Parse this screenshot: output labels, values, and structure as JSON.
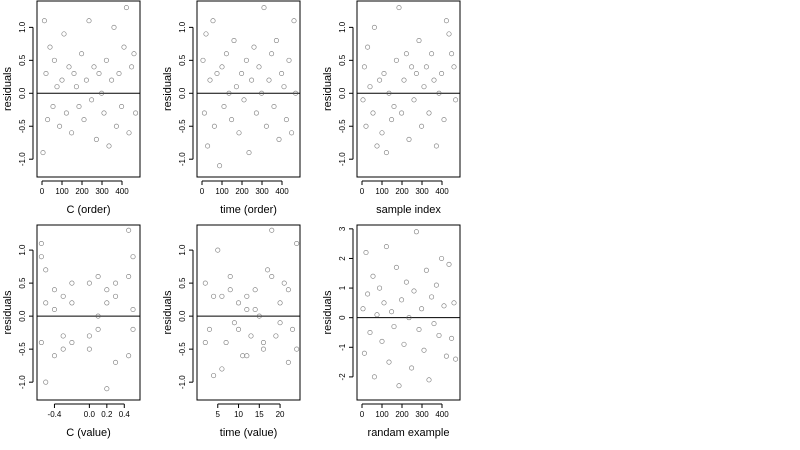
{
  "chart_data": [
    {
      "type": "scatter",
      "xlabel": "C (order)",
      "ylabel": "residuals",
      "color": "#555555",
      "hline": 0,
      "xlim": [
        -25,
        490
      ],
      "ylim": [
        -1.27,
        1.4
      ],
      "xticks": [
        0,
        100,
        200,
        300,
        400
      ],
      "yticks": [
        {
          "value": -1,
          "label": "-1.0"
        },
        -0.5,
        {
          "value": 0,
          "label": "0.0"
        },
        0.5,
        {
          "value": 1,
          "label": "1.0"
        }
      ],
      "x": [
        5,
        12,
        20,
        28,
        40,
        55,
        62,
        75,
        88,
        100,
        110,
        122,
        135,
        148,
        160,
        172,
        185,
        198,
        210,
        222,
        235,
        248,
        260,
        272,
        285,
        298,
        310,
        322,
        335,
        348,
        360,
        372,
        385,
        398,
        410,
        422,
        435,
        448,
        460,
        468
      ],
      "y": [
        -0.9,
        1.1,
        0.3,
        -0.4,
        0.7,
        -0.2,
        0.5,
        0.1,
        -0.5,
        0.2,
        0.9,
        -0.3,
        0.4,
        -0.6,
        0.3,
        0.1,
        -0.2,
        0.6,
        -0.4,
        0.2,
        1.1,
        -0.1,
        0.4,
        -0.7,
        0.3,
        0.0,
        -0.3,
        0.5,
        -0.8,
        0.2,
        1.0,
        -0.5,
        0.3,
        -0.2,
        0.7,
        1.3,
        -0.6,
        0.4,
        0.6,
        -0.3
      ]
    },
    {
      "type": "scatter",
      "xlabel": "time (order)",
      "ylabel": "residuals",
      "color": "#555555",
      "hline": 0,
      "xlim": [
        -25,
        490
      ],
      "ylim": [
        -1.27,
        1.4
      ],
      "xticks": [
        0,
        100,
        200,
        300,
        400
      ],
      "yticks": [
        {
          "value": -1,
          "label": "-1.0"
        },
        -0.5,
        {
          "value": 0,
          "label": "0.0"
        },
        0.5,
        {
          "value": 1,
          "label": "1.0"
        }
      ],
      "x": [
        5,
        12,
        20,
        28,
        40,
        55,
        62,
        75,
        88,
        100,
        110,
        122,
        135,
        148,
        160,
        172,
        185,
        198,
        210,
        222,
        235,
        248,
        260,
        272,
        285,
        298,
        310,
        322,
        335,
        348,
        360,
        372,
        385,
        398,
        410,
        422,
        435,
        448,
        460,
        468
      ],
      "y": [
        0.5,
        -0.3,
        0.9,
        -0.8,
        0.2,
        1.1,
        -0.5,
        0.3,
        -1.1,
        0.4,
        -0.2,
        0.6,
        0.0,
        -0.4,
        0.8,
        0.1,
        -0.6,
        0.3,
        -0.1,
        0.5,
        -0.9,
        0.2,
        0.7,
        -0.3,
        0.4,
        0.0,
        1.3,
        -0.5,
        0.2,
        0.6,
        -0.2,
        0.8,
        -0.7,
        0.3,
        0.1,
        -0.4,
        0.5,
        -0.6,
        1.1,
        0.0
      ]
    },
    {
      "type": "scatter",
      "xlabel": "sample index",
      "ylabel": "residuals",
      "color": "#555555",
      "hline": 0,
      "xlim": [
        -25,
        490
      ],
      "ylim": [
        -1.27,
        1.4
      ],
      "xticks": [
        0,
        100,
        200,
        300,
        400
      ],
      "yticks": [
        {
          "value": -1,
          "label": "-1.0"
        },
        -0.5,
        {
          "value": 0,
          "label": "0.0"
        },
        0.5,
        {
          "value": 1,
          "label": "1.0"
        }
      ],
      "x": [
        5,
        12,
        20,
        28,
        40,
        55,
        62,
        75,
        88,
        100,
        110,
        122,
        135,
        148,
        160,
        172,
        185,
        198,
        210,
        222,
        235,
        248,
        260,
        272,
        285,
        298,
        310,
        322,
        335,
        348,
        360,
        372,
        385,
        398,
        410,
        422,
        435,
        448,
        460,
        468
      ],
      "y": [
        -0.1,
        0.4,
        -0.5,
        0.7,
        0.1,
        -0.3,
        1.0,
        -0.8,
        0.2,
        -0.6,
        0.3,
        -0.9,
        0.0,
        -0.4,
        -0.2,
        0.5,
        1.3,
        -0.3,
        0.2,
        0.6,
        -0.7,
        0.4,
        -0.1,
        0.3,
        0.8,
        -0.5,
        0.1,
        0.4,
        -0.3,
        0.6,
        0.2,
        -0.8,
        0.0,
        0.3,
        -0.4,
        1.1,
        0.9,
        0.6,
        0.4,
        -0.1
      ]
    },
    {
      "type": "scatter",
      "xlabel": "C (value)",
      "ylabel": "residuals",
      "color": "#555555",
      "hline": 0,
      "xlim": [
        -0.6,
        0.58
      ],
      "ylim": [
        -1.27,
        1.38
      ],
      "xticks": [
        -0.4,
        {
          "value": 0,
          "label": "0.0"
        },
        0.2,
        0.4
      ],
      "yticks": [
        {
          "value": -1,
          "label": "-1.0"
        },
        -0.5,
        {
          "value": 0,
          "label": "0.0"
        },
        0.5,
        {
          "value": 1,
          "label": "1.0"
        }
      ],
      "x": [
        -0.55,
        -0.5,
        -0.4,
        -0.3,
        -0.2,
        0,
        0.1,
        0.2,
        0.3,
        0.45,
        0.5,
        -0.55,
        -0.5,
        -0.4,
        -0.3,
        -0.2,
        0,
        0.1,
        0.2,
        0.3,
        0.45,
        0.5,
        -0.55,
        -0.5,
        -0.4,
        -0.3,
        -0.2,
        0,
        0.1,
        0.2,
        0.3,
        0.45,
        0.5
      ],
      "y": [
        1.1,
        -1.0,
        0.4,
        -0.3,
        0.2,
        -0.5,
        0.6,
        -1.1,
        0.3,
        1.3,
        -0.2,
        0.9,
        0.2,
        -0.6,
        0.3,
        -0.4,
        0.5,
        -0.2,
        0.4,
        -0.7,
        0.6,
        0.1,
        -0.4,
        0.7,
        0.1,
        -0.5,
        0.5,
        -0.3,
        0.0,
        0.2,
        0.5,
        -0.6,
        0.9
      ]
    },
    {
      "type": "scatter",
      "xlabel": "time (value)",
      "ylabel": "residuals",
      "color": "#555555",
      "hline": 0,
      "xlim": [
        0,
        24.8
      ],
      "ylim": [
        -1.27,
        1.38
      ],
      "xticks": [
        5,
        10,
        15,
        20
      ],
      "yticks": [
        {
          "value": -1,
          "label": "-1.0"
        },
        -0.5,
        {
          "value": 0,
          "label": "0.0"
        },
        0.5,
        {
          "value": 1,
          "label": "1.0"
        }
      ],
      "x": [
        2,
        3,
        4,
        5,
        6,
        7,
        8,
        9,
        10,
        11,
        12,
        13,
        14,
        15,
        16,
        17,
        18,
        19,
        20,
        21,
        22,
        23,
        24,
        2,
        4,
        6,
        8,
        10,
        12,
        12,
        14,
        16,
        18,
        20,
        22,
        24
      ],
      "y": [
        0.5,
        -0.2,
        -0.9,
        1.0,
        0.3,
        -0.4,
        0.6,
        -0.1,
        0.2,
        -0.6,
        0.1,
        -0.3,
        0.4,
        0.0,
        -0.5,
        0.7,
        1.3,
        -0.3,
        0.2,
        0.5,
        -0.7,
        -0.2,
        1.1,
        -0.4,
        0.3,
        -0.8,
        0.4,
        -0.2,
        -0.6,
        0.3,
        0.1,
        -0.4,
        0.6,
        -0.1,
        0.4,
        -0.5
      ]
    },
    {
      "type": "scatter",
      "xlabel": "randam example",
      "ylabel": "residuals",
      "color": "#555555",
      "hline": 0,
      "xlim": [
        -25,
        490
      ],
      "ylim": [
        -2.78,
        3.13
      ],
      "xticks": [
        0,
        100,
        200,
        300,
        400
      ],
      "yticks": [
        -2,
        -1,
        0,
        1,
        2,
        3
      ],
      "x": [
        5,
        12,
        20,
        28,
        40,
        55,
        62,
        75,
        88,
        100,
        110,
        122,
        135,
        148,
        160,
        172,
        185,
        198,
        210,
        222,
        235,
        248,
        260,
        272,
        285,
        298,
        310,
        322,
        335,
        348,
        360,
        372,
        385,
        398,
        410,
        422,
        435,
        448,
        460,
        468
      ],
      "y": [
        0.3,
        -1.2,
        2.2,
        0.8,
        -0.5,
        1.4,
        -2.0,
        0.1,
        1.0,
        -0.8,
        0.5,
        2.4,
        -1.5,
        0.2,
        -0.3,
        1.7,
        -2.3,
        0.6,
        -0.9,
        1.2,
        0.0,
        -1.7,
        0.9,
        2.9,
        -0.4,
        0.3,
        -1.1,
        1.6,
        -2.1,
        0.7,
        -0.2,
        1.1,
        -0.6,
        2.0,
        0.4,
        -1.3,
        1.8,
        -0.7,
        0.5,
        -1.4
      ]
    }
  ]
}
